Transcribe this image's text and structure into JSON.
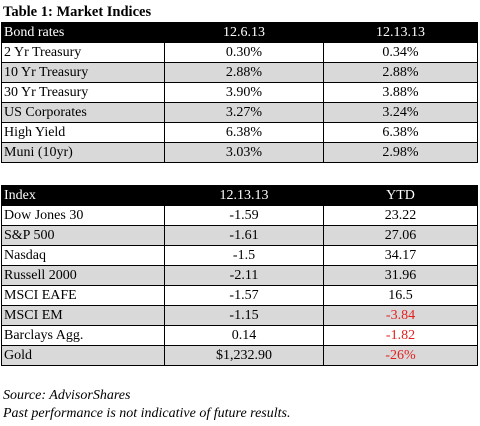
{
  "title": "Table 1: Market Indices",
  "bond_table": {
    "headers": [
      "Bond rates",
      "12.6.13",
      "12.13.13"
    ],
    "rows": [
      [
        "2 Yr Treasury",
        "0.30%",
        "0.34%"
      ],
      [
        "10 Yr Treasury",
        "2.88%",
        "2.88%"
      ],
      [
        "30 Yr Treasury",
        "3.90%",
        "3.88%"
      ],
      [
        "US Corporates",
        "3.27%",
        "3.24%"
      ],
      [
        "High Yield",
        "6.38%",
        "6.38%"
      ],
      [
        "Muni (10yr)",
        "3.03%",
        "2.98%"
      ]
    ]
  },
  "index_table": {
    "headers": [
      "Index",
      "12.13.13",
      "YTD"
    ],
    "rows": [
      [
        "Dow Jones 30",
        "-1.59",
        "23.22"
      ],
      [
        "S&P 500",
        "-1.61",
        "27.06"
      ],
      [
        "Nasdaq",
        "-1.5",
        "34.17"
      ],
      [
        "Russell 2000",
        "-2.11",
        "31.96"
      ],
      [
        "MSCI EAFE",
        "-1.57",
        "16.5"
      ],
      [
        "MSCI EM",
        "-1.15",
        "-3.84"
      ],
      [
        "Barclays Agg.",
        "0.14",
        "-1.82"
      ],
      [
        "Gold",
        "$1,232.90",
        "-26%"
      ]
    ]
  },
  "source": "Source: AdvisorShares",
  "disclaimer": "Past performance is not indicative of future results.",
  "colors": {
    "header_bg": "#000000",
    "shade_bg": "#d9d9d9",
    "negative_text": "#e41f1f"
  }
}
